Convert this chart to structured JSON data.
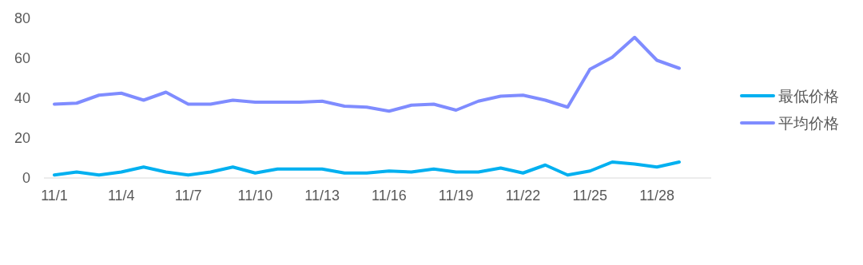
{
  "chart_data": {
    "type": "line",
    "categories": [
      "11/1",
      null,
      null,
      "11/4",
      null,
      null,
      "11/7",
      null,
      null,
      "11/10",
      null,
      null,
      "11/13",
      null,
      null,
      "11/16",
      null,
      null,
      "11/19",
      null,
      null,
      "11/22",
      null,
      null,
      "11/25",
      null,
      null,
      "11/28",
      null
    ],
    "series": [
      {
        "name": "最低价格",
        "color": "#00b0f0",
        "values": [
          1.5,
          3,
          1.5,
          3,
          5.5,
          3,
          1.5,
          3,
          5.5,
          2.5,
          4.5,
          4.5,
          4.5,
          2.5,
          2.5,
          3.5,
          3,
          4.5,
          3,
          3,
          5,
          2.5,
          6.5,
          1.5,
          3.5,
          8,
          7,
          5.5,
          8
        ]
      },
      {
        "name": "平均价格",
        "color": "#7f8cff",
        "values": [
          37,
          37.5,
          41.5,
          42.5,
          39,
          43,
          37,
          37,
          39,
          38,
          38,
          38,
          38.5,
          36,
          35.5,
          33.5,
          36.5,
          37,
          34,
          38.5,
          41,
          41.5,
          39,
          35.5,
          54.5,
          60.5,
          70.5,
          59,
          55
        ]
      }
    ],
    "ylim": [
      0,
      80
    ],
    "yticks": [
      0,
      20,
      40,
      60,
      80
    ],
    "grid": false,
    "legend": "right",
    "marker": "none",
    "line_style": "solid"
  }
}
